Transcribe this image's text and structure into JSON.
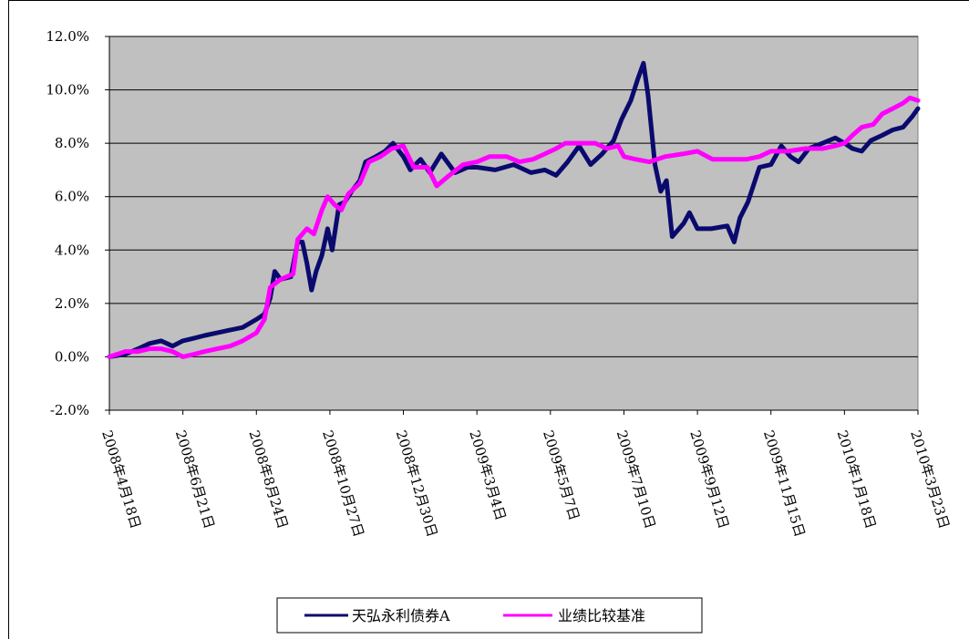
{
  "chart_data": {
    "type": "line",
    "title": "",
    "xlabel": "",
    "ylabel": "",
    "ylim": [
      -2.0,
      12.0
    ],
    "y_ticks": [
      "-2.0%",
      "0.0%",
      "2.0%",
      "4.0%",
      "6.0%",
      "8.0%",
      "10.0%",
      "12.0%"
    ],
    "y_tick_values": [
      -2,
      0,
      2,
      4,
      6,
      8,
      10,
      12
    ],
    "x_ticks": [
      "2008年4月18日",
      "2008年6月21日",
      "2008年8月24日",
      "2008年10月27日",
      "2008年12月30日",
      "2009年3月4日",
      "2009年5月7日",
      "2009年7月10日",
      "2009年9月12日",
      "2009年11月15日",
      "2010年1月18日",
      "2010年3月23日"
    ],
    "x_tick_dates": [
      "2008-04-18",
      "2008-06-21",
      "2008-08-24",
      "2008-10-27",
      "2008-12-30",
      "2009-03-04",
      "2009-05-07",
      "2009-07-10",
      "2009-09-12",
      "2009-11-15",
      "2010-01-18",
      "2010-03-23"
    ],
    "grid": true,
    "legend_position": "bottom",
    "background": "#c0c0c0",
    "series": [
      {
        "name": "天弘永利债券A",
        "color": "#0a0a6e",
        "points": [
          [
            "2008-04-18",
            0.0
          ],
          [
            "2008-05-02",
            0.1
          ],
          [
            "2008-05-13",
            0.3
          ],
          [
            "2008-05-23",
            0.5
          ],
          [
            "2008-06-02",
            0.6
          ],
          [
            "2008-06-12",
            0.4
          ],
          [
            "2008-06-21",
            0.6
          ],
          [
            "2008-07-01",
            0.7
          ],
          [
            "2008-07-10",
            0.8
          ],
          [
            "2008-07-21",
            0.9
          ],
          [
            "2008-08-01",
            1.0
          ],
          [
            "2008-08-12",
            1.1
          ],
          [
            "2008-08-24",
            1.4
          ],
          [
            "2008-08-31",
            1.6
          ],
          [
            "2008-09-05",
            2.2
          ],
          [
            "2008-09-09",
            3.2
          ],
          [
            "2008-09-14",
            2.9
          ],
          [
            "2008-09-23",
            3.0
          ],
          [
            "2008-09-29",
            4.3
          ],
          [
            "2008-10-03",
            4.3
          ],
          [
            "2008-10-07",
            3.5
          ],
          [
            "2008-10-11",
            2.5
          ],
          [
            "2008-10-15",
            3.2
          ],
          [
            "2008-10-20",
            3.8
          ],
          [
            "2008-10-25",
            4.8
          ],
          [
            "2008-10-29",
            4.0
          ],
          [
            "2008-11-04",
            5.7
          ],
          [
            "2008-11-09",
            5.8
          ],
          [
            "2008-11-15",
            6.2
          ],
          [
            "2008-11-22",
            6.6
          ],
          [
            "2008-11-27",
            7.3
          ],
          [
            "2008-12-06",
            7.5
          ],
          [
            "2008-12-14",
            7.7
          ],
          [
            "2008-12-21",
            8.0
          ],
          [
            "2008-12-30",
            7.5
          ],
          [
            "2009-01-05",
            7.0
          ],
          [
            "2009-01-14",
            7.4
          ],
          [
            "2009-01-22",
            6.9
          ],
          [
            "2009-02-01",
            7.6
          ],
          [
            "2009-02-13",
            6.9
          ],
          [
            "2009-02-24",
            7.1
          ],
          [
            "2009-03-04",
            7.1
          ],
          [
            "2009-03-20",
            7.0
          ],
          [
            "2009-04-05",
            7.2
          ],
          [
            "2009-04-20",
            6.9
          ],
          [
            "2009-05-02",
            7.0
          ],
          [
            "2009-05-12",
            6.8
          ],
          [
            "2009-05-22",
            7.3
          ],
          [
            "2009-06-01",
            7.9
          ],
          [
            "2009-06-11",
            7.2
          ],
          [
            "2009-06-21",
            7.6
          ],
          [
            "2009-07-01",
            8.1
          ],
          [
            "2009-07-08",
            8.9
          ],
          [
            "2009-07-16",
            9.6
          ],
          [
            "2009-07-22",
            10.4
          ],
          [
            "2009-07-27",
            11.0
          ],
          [
            "2009-07-31",
            9.8
          ],
          [
            "2009-08-06",
            7.2
          ],
          [
            "2009-08-11",
            6.2
          ],
          [
            "2009-08-16",
            6.6
          ],
          [
            "2009-08-21",
            4.5
          ],
          [
            "2009-08-31",
            5.0
          ],
          [
            "2009-09-05",
            5.4
          ],
          [
            "2009-09-12",
            4.8
          ],
          [
            "2009-09-24",
            4.8
          ],
          [
            "2009-10-08",
            4.9
          ],
          [
            "2009-10-14",
            4.3
          ],
          [
            "2009-10-19",
            5.2
          ],
          [
            "2009-10-26",
            5.8
          ],
          [
            "2009-11-05",
            7.1
          ],
          [
            "2009-11-15",
            7.2
          ],
          [
            "2009-11-24",
            7.9
          ],
          [
            "2009-12-02",
            7.5
          ],
          [
            "2009-12-09",
            7.3
          ],
          [
            "2009-12-18",
            7.8
          ],
          [
            "2009-12-30",
            8.0
          ],
          [
            "2010-01-10",
            8.2
          ],
          [
            "2010-01-18",
            8.0
          ],
          [
            "2010-01-25",
            7.8
          ],
          [
            "2010-02-02",
            7.7
          ],
          [
            "2010-02-10",
            8.1
          ],
          [
            "2010-02-20",
            8.3
          ],
          [
            "2010-03-01",
            8.5
          ],
          [
            "2010-03-10",
            8.6
          ],
          [
            "2010-03-18",
            9.0
          ],
          [
            "2010-03-23",
            9.3
          ]
        ]
      },
      {
        "name": "业绩比较基准",
        "color": "#ff00ff",
        "points": [
          [
            "2008-04-18",
            0.0
          ],
          [
            "2008-05-02",
            0.2
          ],
          [
            "2008-05-13",
            0.2
          ],
          [
            "2008-05-23",
            0.3
          ],
          [
            "2008-06-02",
            0.3
          ],
          [
            "2008-06-12",
            0.2
          ],
          [
            "2008-06-21",
            0.0
          ],
          [
            "2008-07-01",
            0.1
          ],
          [
            "2008-07-10",
            0.2
          ],
          [
            "2008-07-21",
            0.3
          ],
          [
            "2008-08-01",
            0.4
          ],
          [
            "2008-08-12",
            0.6
          ],
          [
            "2008-08-24",
            0.9
          ],
          [
            "2008-08-31",
            1.4
          ],
          [
            "2008-09-05",
            2.6
          ],
          [
            "2008-09-14",
            2.9
          ],
          [
            "2008-09-25",
            3.1
          ],
          [
            "2008-09-29",
            4.4
          ],
          [
            "2008-10-07",
            4.8
          ],
          [
            "2008-10-13",
            4.6
          ],
          [
            "2008-10-20",
            5.5
          ],
          [
            "2008-10-25",
            6.0
          ],
          [
            "2008-10-31",
            5.7
          ],
          [
            "2008-11-06",
            5.5
          ],
          [
            "2008-11-12",
            6.1
          ],
          [
            "2008-11-22",
            6.5
          ],
          [
            "2008-11-30",
            7.3
          ],
          [
            "2008-12-10",
            7.5
          ],
          [
            "2008-12-20",
            7.8
          ],
          [
            "2008-12-30",
            7.9
          ],
          [
            "2009-01-08",
            7.1
          ],
          [
            "2009-01-20",
            7.1
          ],
          [
            "2009-01-28",
            6.4
          ],
          [
            "2009-02-08",
            6.8
          ],
          [
            "2009-02-20",
            7.2
          ],
          [
            "2009-03-04",
            7.3
          ],
          [
            "2009-03-15",
            7.5
          ],
          [
            "2009-03-30",
            7.5
          ],
          [
            "2009-04-10",
            7.3
          ],
          [
            "2009-04-22",
            7.4
          ],
          [
            "2009-05-02",
            7.6
          ],
          [
            "2009-05-12",
            7.8
          ],
          [
            "2009-05-20",
            8.0
          ],
          [
            "2009-06-01",
            8.0
          ],
          [
            "2009-06-15",
            8.0
          ],
          [
            "2009-06-25",
            7.8
          ],
          [
            "2009-07-05",
            7.9
          ],
          [
            "2009-07-10",
            7.5
          ],
          [
            "2009-07-20",
            7.4
          ],
          [
            "2009-08-01",
            7.3
          ],
          [
            "2009-08-15",
            7.5
          ],
          [
            "2009-08-30",
            7.6
          ],
          [
            "2009-09-12",
            7.7
          ],
          [
            "2009-09-25",
            7.4
          ],
          [
            "2009-10-10",
            7.4
          ],
          [
            "2009-10-25",
            7.4
          ],
          [
            "2009-11-05",
            7.5
          ],
          [
            "2009-11-15",
            7.7
          ],
          [
            "2009-11-30",
            7.7
          ],
          [
            "2009-12-15",
            7.8
          ],
          [
            "2009-12-30",
            7.8
          ],
          [
            "2010-01-10",
            7.9
          ],
          [
            "2010-01-18",
            8.0
          ],
          [
            "2010-01-25",
            8.3
          ],
          [
            "2010-02-02",
            8.6
          ],
          [
            "2010-02-12",
            8.7
          ],
          [
            "2010-02-20",
            9.1
          ],
          [
            "2010-03-01",
            9.3
          ],
          [
            "2010-03-10",
            9.5
          ],
          [
            "2010-03-16",
            9.7
          ],
          [
            "2010-03-23",
            9.6
          ]
        ]
      }
    ]
  }
}
